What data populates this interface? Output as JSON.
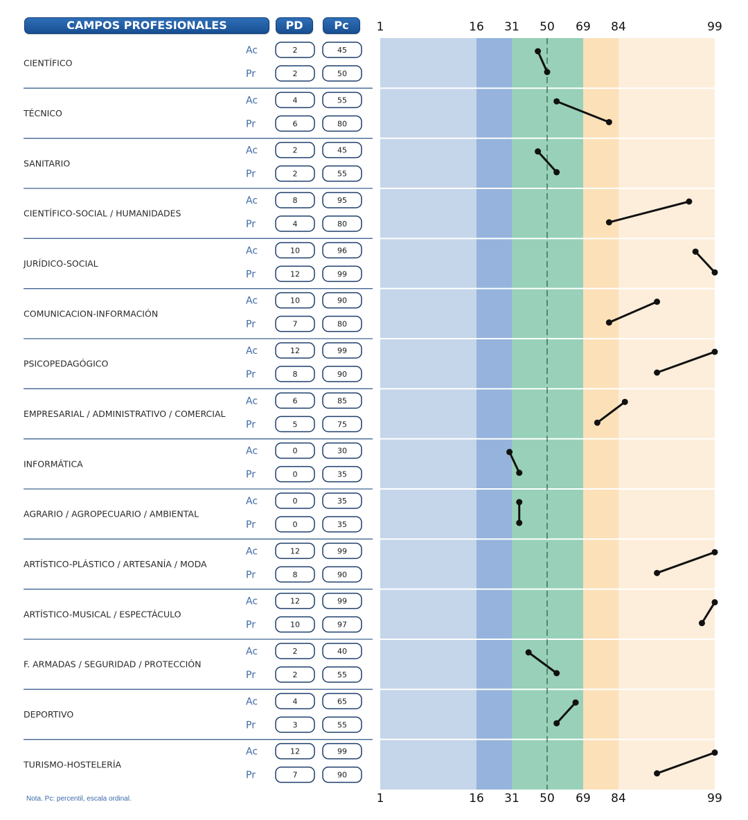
{
  "header": {
    "title": "CAMPOS PROFESIONALES",
    "col_pd": "PD",
    "col_pc": "Pc"
  },
  "note": "Nota. Pc: percentil, escala ordinal.",
  "colors": {
    "header_blue": "#1f5ea8",
    "band_light_blue": "#c5d5ea",
    "band_mid_blue": "#95b3dc",
    "band_green": "#98d0b9",
    "band_orange": "#fce0b8",
    "band_light_orange": "#fdeedb",
    "line_black": "#111111",
    "divider": "#3f6490"
  },
  "chart_data": {
    "type": "line",
    "scale_ticks": [
      1,
      16,
      31,
      50,
      69,
      84,
      99
    ],
    "scale_tick_labels": [
      "1",
      "16",
      "31",
      "50",
      "69",
      "84",
      "99"
    ],
    "reference_line": 50,
    "row_labels": [
      "Ac",
      "Pr"
    ],
    "series": [
      {
        "field": "CIENTÍFICO",
        "ac_pd": "2",
        "ac_pc": 45,
        "pr_pd": "2",
        "pr_pc": 50
      },
      {
        "field": "TÉCNICO",
        "ac_pd": "4",
        "ac_pc": 55,
        "pr_pd": "6",
        "pr_pc": 80
      },
      {
        "field": "SANITARIO",
        "ac_pd": "2",
        "ac_pc": 45,
        "pr_pd": "2",
        "pr_pc": 55
      },
      {
        "field": "CIENTÍFICO-SOCIAL / HUMANIDADES",
        "ac_pd": "8",
        "ac_pc": 95,
        "pr_pd": "4",
        "pr_pc": 80
      },
      {
        "field": "JURÍDICO-SOCIAL",
        "ac_pd": "10",
        "ac_pc": 96,
        "pr_pd": "12",
        "pr_pc": 99
      },
      {
        "field": "COMUNICACION-INFORMACIÓN",
        "ac_pd": "10",
        "ac_pc": 90,
        "pr_pd": "7",
        "pr_pc": 80
      },
      {
        "field": "PSICOPEDAGÓGICO",
        "ac_pd": "12",
        "ac_pc": 99,
        "pr_pd": "8",
        "pr_pc": 90
      },
      {
        "field": "EMPRESARIAL / ADMINISTRATIVO / COMERCIAL",
        "ac_pd": "6",
        "ac_pc": 85,
        "pr_pd": "5",
        "pr_pc": 75
      },
      {
        "field": "INFORMÁTICA",
        "ac_pd": "0",
        "ac_pc": 30,
        "pr_pd": "0",
        "pr_pc": 35
      },
      {
        "field": "AGRARIO / AGROPECUARIO / AMBIENTAL",
        "ac_pd": "0",
        "ac_pc": 35,
        "pr_pd": "0",
        "pr_pc": 35
      },
      {
        "field": "ARTÍSTICO-PLÁSTICO / ARTESANÍA / MODA",
        "ac_pd": "12",
        "ac_pc": 99,
        "pr_pd": "8",
        "pr_pc": 90
      },
      {
        "field": "ARTÍSTICO-MUSICAL / ESPECTÁCULO",
        "ac_pd": "12",
        "ac_pc": 99,
        "pr_pd": "10",
        "pr_pc": 97
      },
      {
        "field": "F. ARMADAS / SEGURIDAD / PROTECCIÓN",
        "ac_pd": "2",
        "ac_pc": 40,
        "pr_pd": "2",
        "pr_pc": 55
      },
      {
        "field": "DEPORTIVO",
        "ac_pd": "4",
        "ac_pc": 65,
        "pr_pd": "3",
        "pr_pc": 55
      },
      {
        "field": "TURISMO-HOSTELERÍA",
        "ac_pd": "12",
        "ac_pc": 99,
        "pr_pd": "7",
        "pr_pc": 90
      }
    ]
  }
}
